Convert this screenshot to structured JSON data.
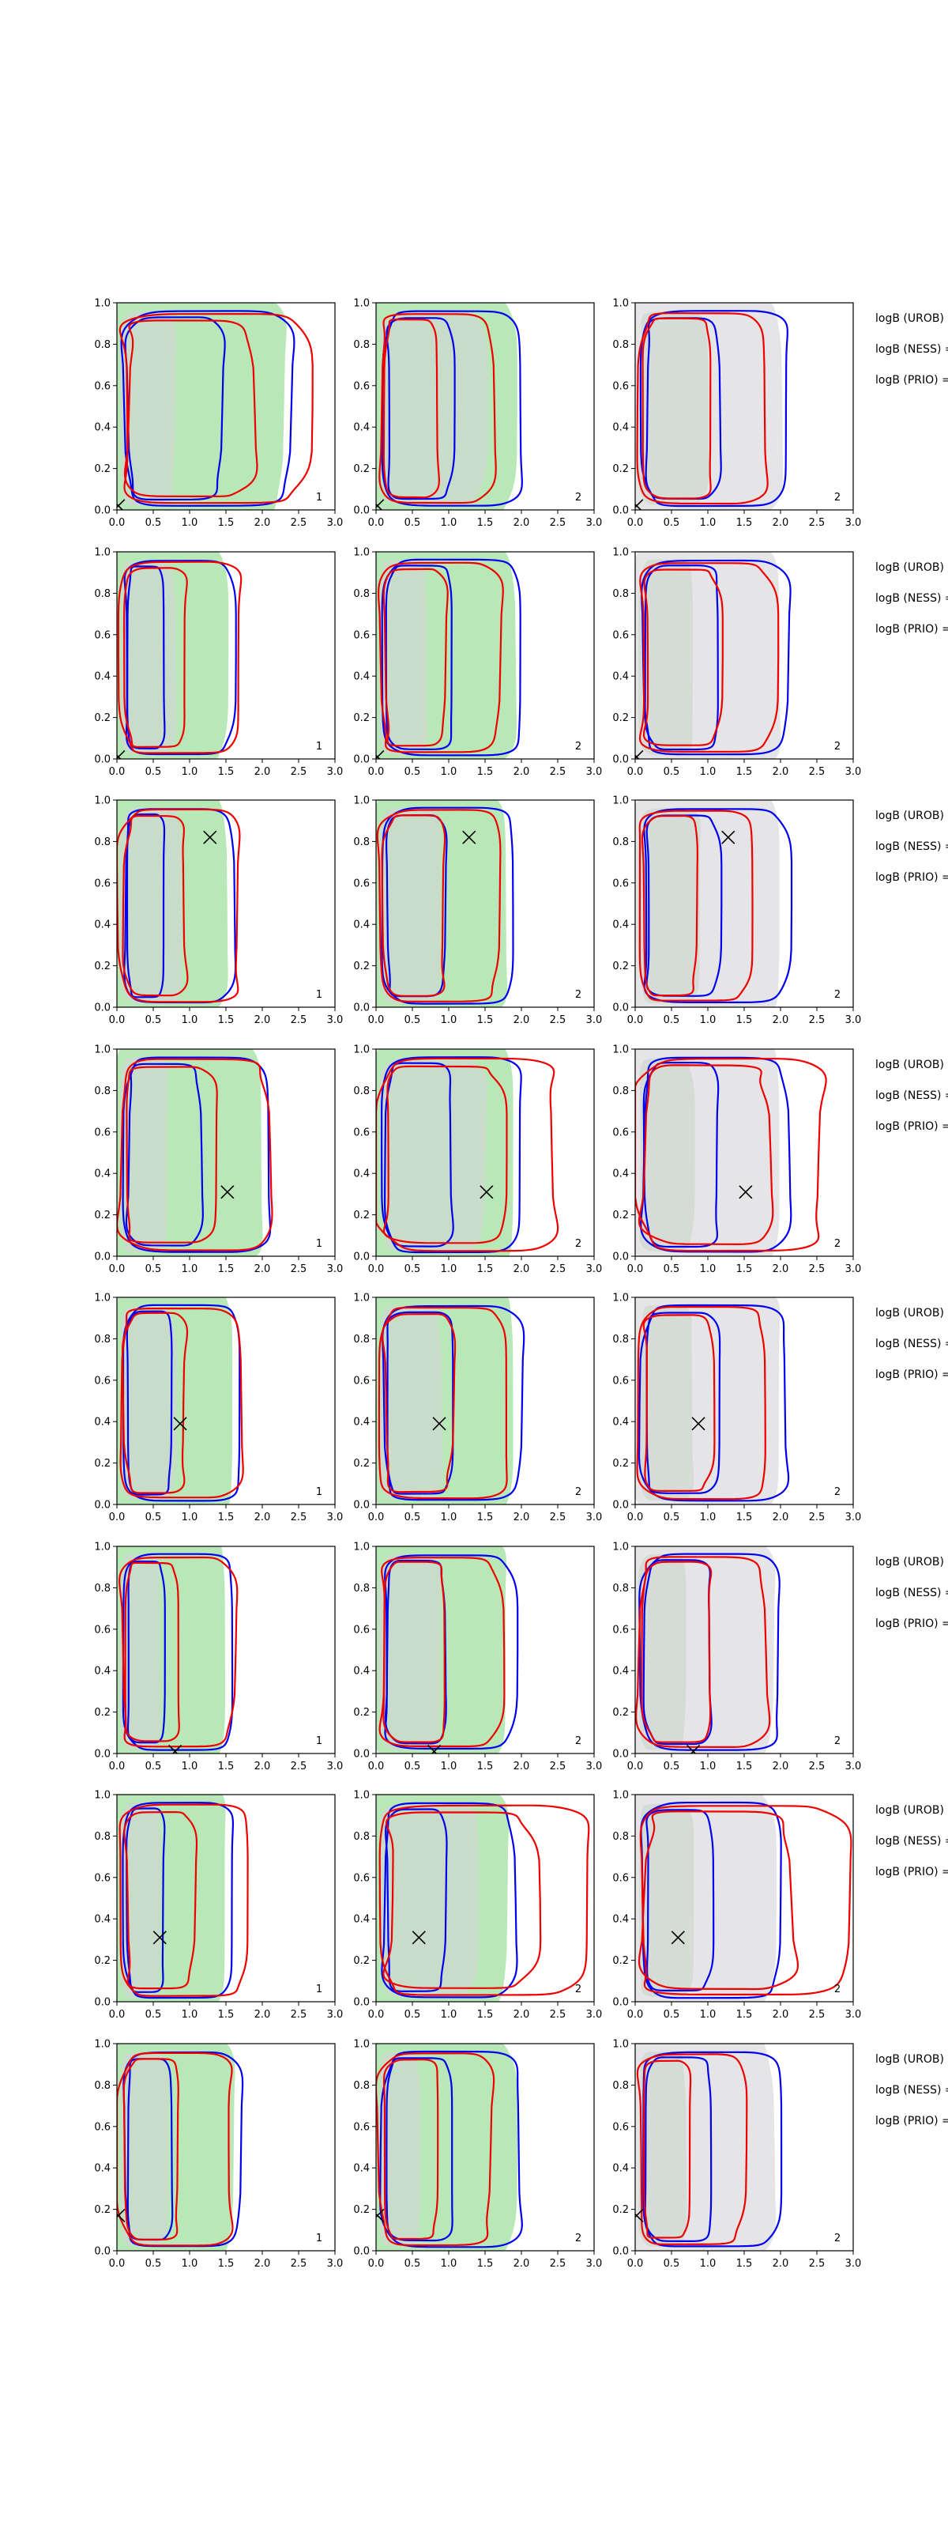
{
  "chart_data": {
    "type": "contour",
    "layout": {
      "rows": 8,
      "cols": 3
    },
    "xlim": [
      0,
      3
    ],
    "ylim": [
      0,
      1
    ],
    "xticks": [
      "0.0",
      "0.5",
      "1.0",
      "1.5",
      "2.0",
      "2.5",
      "3.0"
    ],
    "yticks": [
      "0.0",
      "0.2",
      "0.4",
      "0.6",
      "0.8",
      "1.0"
    ],
    "col_fill_colors": [
      "#b9e8b8",
      "#b9e8b8",
      "#e5e5e7"
    ],
    "inner_fill_color": "#cfd7cf",
    "line_colors": {
      "blue": "#0000ee",
      "red": "#ee0000"
    },
    "marker": "x",
    "panel_labels": [
      [
        "1",
        "2",
        "2"
      ],
      [
        "1",
        "2",
        "2"
      ],
      [
        "1",
        "2",
        "2"
      ],
      [
        "1",
        "2",
        "2"
      ],
      [
        "1",
        "2",
        "2"
      ],
      [
        "1",
        "2",
        "2"
      ],
      [
        "1",
        "2",
        "2"
      ],
      [
        "1",
        "2",
        "2"
      ]
    ],
    "row_labels": [
      "logB (UROB) =",
      "logB (NESS) =",
      "logB (PRIO) ="
    ],
    "true_points": [
      {
        "x": 0.02,
        "y": 0.02
      },
      {
        "x": 0.02,
        "y": 0.01
      },
      {
        "x": 1.28,
        "y": 0.82
      },
      {
        "x": 1.52,
        "y": 0.31
      },
      {
        "x": 0.87,
        "y": 0.39
      },
      {
        "x": 0.8,
        "y": 0.01
      },
      {
        "x": 0.59,
        "y": 0.31
      },
      {
        "x": 0.02,
        "y": 0.17
      }
    ],
    "extent_levels": {
      "col_fill_inner": [
        [
          0.8,
          1.5,
          1.0
        ],
        [
          0.8,
          0.7,
          0.8
        ],
        [
          0.9,
          0.9,
          0.9
        ],
        [
          0.7,
          1.5,
          0.8
        ],
        [
          0.8,
          0.9,
          0.8
        ],
        [
          0.6,
          0.9,
          0.7
        ],
        [
          0.6,
          1.4,
          0.8
        ],
        [
          0.7,
          0.6,
          0.7
        ]
      ],
      "blue_outer": [
        [
          2.4,
          2.0,
          2.1
        ],
        [
          1.6,
          2.0,
          2.1
        ],
        [
          1.6,
          1.9,
          2.1
        ],
        [
          2.1,
          2.0,
          2.1
        ],
        [
          1.7,
          2.0,
          2.1
        ],
        [
          1.6,
          1.9,
          2.0
        ],
        [
          1.6,
          1.9,
          2.0
        ],
        [
          1.7,
          2.0,
          2.0
        ]
      ],
      "red_outer": [
        [
          2.6,
          1.6,
          1.8
        ],
        [
          1.7,
          1.7,
          1.9
        ],
        [
          1.7,
          1.7,
          1.6
        ],
        [
          2.1,
          2.5,
          2.6
        ],
        [
          1.7,
          1.8,
          1.8
        ],
        [
          1.6,
          1.7,
          1.8
        ],
        [
          1.8,
          2.9,
          2.9
        ],
        [
          1.6,
          1.6,
          1.5
        ]
      ]
    }
  }
}
